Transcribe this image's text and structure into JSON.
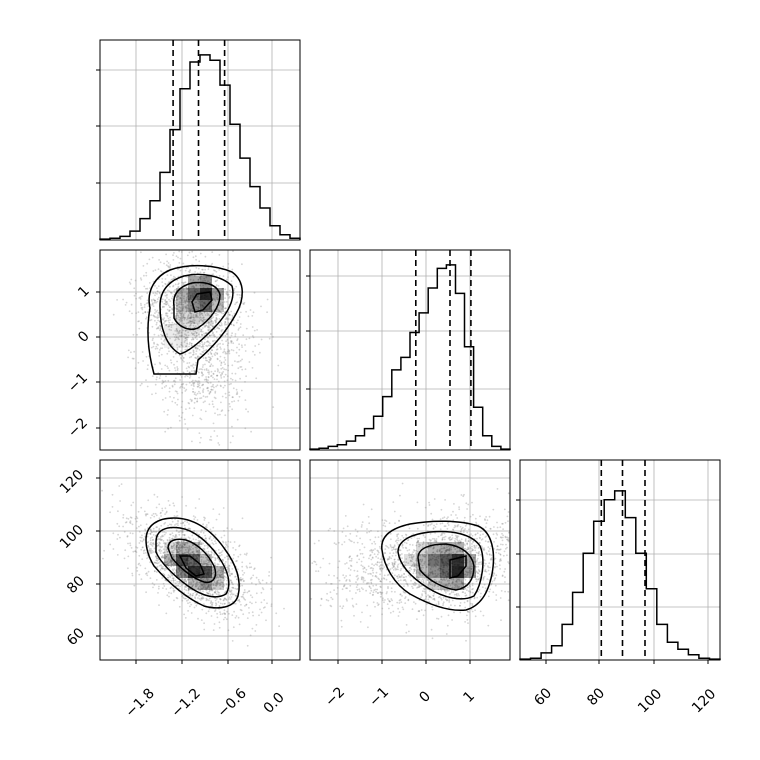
{
  "chart_data": [
    {
      "type": "histogram",
      "panel": "marginal-p0",
      "xlim": [
        -2.3,
        0.3
      ],
      "ylim": [
        0,
        1.0
      ],
      "quantiles": [
        -1.35,
        -1.02,
        -0.68
      ],
      "counts": [
        0.005,
        0.01,
        0.02,
        0.05,
        0.12,
        0.22,
        0.38,
        0.62,
        0.85,
        1.0,
        1.04,
        1.01,
        0.87,
        0.65,
        0.46,
        0.3,
        0.18,
        0.08,
        0.03,
        0.01
      ],
      "grid": true
    },
    {
      "type": "histogram",
      "panel": "marginal-p1",
      "xlim": [
        -2.6,
        1.9
      ],
      "ylim": [
        0,
        1.0
      ],
      "quantiles": [
        -0.22,
        0.55,
        1.02
      ],
      "counts": [
        0.005,
        0.01,
        0.02,
        0.03,
        0.05,
        0.08,
        0.12,
        0.19,
        0.3,
        0.45,
        0.52,
        0.66,
        0.77,
        0.91,
        1.02,
        1.04,
        0.88,
        0.58,
        0.24,
        0.08,
        0.02,
        0.005
      ],
      "grid": true
    },
    {
      "type": "histogram",
      "panel": "marginal-p2",
      "xlim": [
        45,
        125
      ],
      "ylim": [
        0,
        1.0
      ],
      "quantiles": [
        77.5,
        86,
        95
      ],
      "counts": [
        0.005,
        0.01,
        0.04,
        0.08,
        0.2,
        0.38,
        0.6,
        0.78,
        0.9,
        0.95,
        0.8,
        0.6,
        0.4,
        0.2,
        0.1,
        0.06,
        0.03,
        0.01,
        0.005
      ],
      "grid": true
    },
    {
      "type": "contour",
      "panel": "joint-p0-p1",
      "xlim": [
        -2.3,
        0.3
      ],
      "ylim": [
        -2.5,
        1.9
      ],
      "center": [
        -0.98,
        0.62
      ],
      "grid": true
    },
    {
      "type": "contour",
      "panel": "joint-p0-p2",
      "xlim": [
        -2.3,
        0.3
      ],
      "ylim": [
        50,
        125
      ],
      "center": [
        -1.1,
        85
      ],
      "grid": true
    },
    {
      "type": "contour",
      "panel": "joint-p1-p2",
      "xlim": [
        -2.6,
        1.9
      ],
      "ylim": [
        50,
        125
      ],
      "center": [
        0.7,
        85
      ],
      "grid": true
    }
  ],
  "ticks": {
    "p0": [
      "−1.8",
      "−1.2",
      "−0.6",
      "0.0"
    ],
    "p1_x": [
      "−2",
      "−1",
      "0",
      "1"
    ],
    "p1_y": [
      "1",
      "0",
      "−1",
      "−2"
    ],
    "p2_x": [
      "60",
      "80",
      "100",
      "120"
    ],
    "p2_y": [
      "120",
      "100",
      "80",
      "60"
    ]
  },
  "colors": {
    "line": "#000000",
    "grid": "#b0b0b0",
    "points": "#888888"
  }
}
